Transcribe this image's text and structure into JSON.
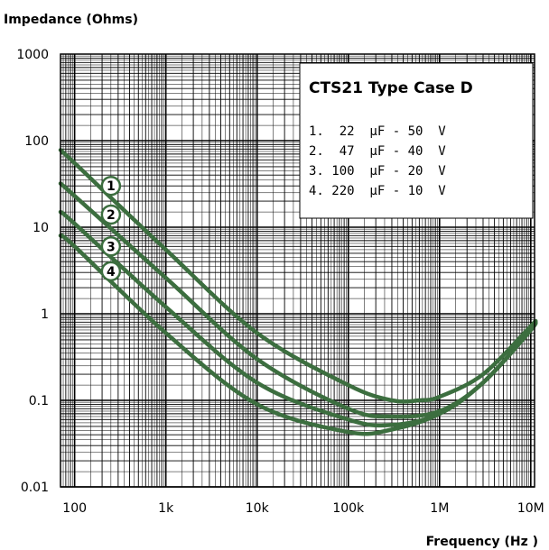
{
  "chart_data": {
    "type": "line",
    "title": "",
    "ylabel": "Impedance (Ohms)",
    "xlabel": "Frequency (Hz  )",
    "x_scale": "log",
    "y_scale": "log",
    "xlim": [
      70,
      11000000
    ],
    "ylim": [
      0.01,
      1000
    ],
    "grid": true,
    "x_ticks": [
      {
        "value": 100,
        "label": "100"
      },
      {
        "value": 1000,
        "label": "1k"
      },
      {
        "value": 10000,
        "label": "10k"
      },
      {
        "value": 100000,
        "label": "100k"
      },
      {
        "value": 1000000,
        "label": "1M"
      },
      {
        "value": 10000000,
        "label": "10M"
      }
    ],
    "y_ticks": [
      {
        "value": 1000,
        "label": "1000"
      },
      {
        "value": 100,
        "label": "100"
      },
      {
        "value": 10,
        "label": "10"
      },
      {
        "value": 1,
        "label": "1"
      },
      {
        "value": 0.1,
        "label": "0.1"
      },
      {
        "value": 0.01,
        "label": "0.01"
      }
    ],
    "legend": {
      "title": "CTS21 Type Case D",
      "placement": "top-right",
      "entries": [
        "1.  22  μF - 50  V",
        "2.  47  μF - 40  V",
        "3. 100  μF - 20  V",
        "4. 220  μF - 10  V"
      ]
    },
    "line_color": "#3c6e3f",
    "series": [
      {
        "marker": "1",
        "marker_x": 250,
        "marker_y": 30,
        "points": [
          [
            70,
            78
          ],
          [
            100,
            55
          ],
          [
            1000,
            5.5
          ],
          [
            10000,
            0.6
          ],
          [
            100000,
            0.15
          ],
          [
            300000,
            0.1
          ],
          [
            600000,
            0.1
          ],
          [
            1000000,
            0.11
          ],
          [
            3000000,
            0.2
          ],
          [
            10000000,
            0.72
          ],
          [
            11000000,
            0.8
          ]
        ]
      },
      {
        "marker": "2",
        "marker_x": 250,
        "marker_y": 14,
        "points": [
          [
            70,
            32
          ],
          [
            100,
            23
          ],
          [
            1000,
            2.6
          ],
          [
            10000,
            0.3
          ],
          [
            100000,
            0.08
          ],
          [
            300000,
            0.065
          ],
          [
            1000000,
            0.075
          ],
          [
            3000000,
            0.16
          ],
          [
            10000000,
            0.65
          ],
          [
            11000000,
            0.8
          ]
        ]
      },
      {
        "marker": "3",
        "marker_x": 250,
        "marker_y": 6,
        "points": [
          [
            70,
            15
          ],
          [
            100,
            11
          ],
          [
            1000,
            1.2
          ],
          [
            10000,
            0.16
          ],
          [
            100000,
            0.06
          ],
          [
            300000,
            0.052
          ],
          [
            1000000,
            0.07
          ],
          [
            3000000,
            0.16
          ],
          [
            10000000,
            0.65
          ],
          [
            11000000,
            0.8
          ]
        ]
      },
      {
        "marker": "4",
        "marker_x": 250,
        "marker_y": 3.1,
        "points": [
          [
            70,
            8
          ],
          [
            100,
            6
          ],
          [
            1000,
            0.6
          ],
          [
            10000,
            0.09
          ],
          [
            100000,
            0.043
          ],
          [
            300000,
            0.046
          ],
          [
            1000000,
            0.07
          ],
          [
            3000000,
            0.16
          ],
          [
            10000000,
            0.65
          ],
          [
            11000000,
            0.8
          ]
        ]
      }
    ]
  }
}
